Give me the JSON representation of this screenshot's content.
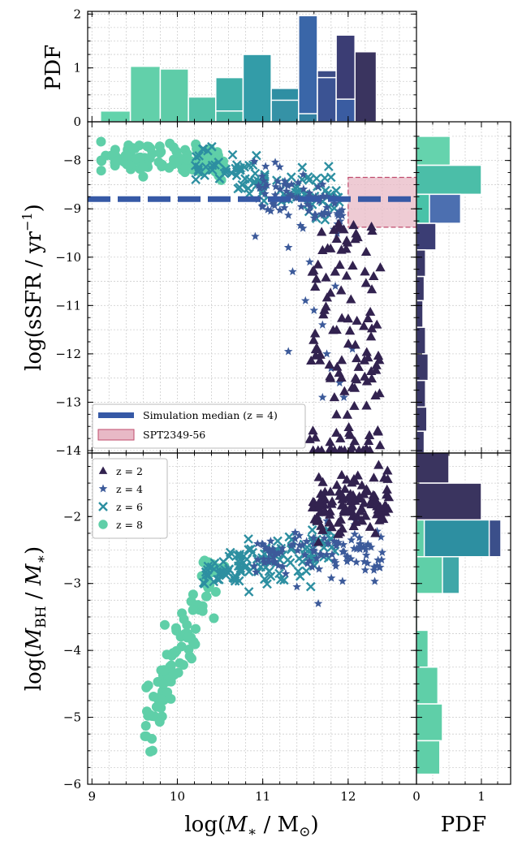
{
  "chart_data": {
    "type": "scatter",
    "title": "",
    "xlabel_pre": "log(",
    "xlabel_italic": "M",
    "xlabel_sub": "∗",
    "xlabel_mid": " / M",
    "xlabel_sub2": "⊙",
    "xlabel_post": ")",
    "xlim": [
      8.95,
      12.8
    ],
    "x_ticks": [
      "9",
      "10",
      "11",
      "12"
    ],
    "x_tick_values": [
      9,
      10,
      11,
      12
    ],
    "colors": {
      "z2": "#32224f",
      "z4": "#3c5a9a",
      "z6": "#2d8fa1",
      "z8": "#5fcfa8",
      "hline": "#3659a6",
      "span_fill": "#e8b9c6",
      "span_edge": "#c04d6e"
    },
    "top_hist": {
      "ylabel": "PDF",
      "ylim": [
        0,
        2.05
      ],
      "y_ticks": [
        "0",
        "1",
        "2"
      ],
      "y_tick_values": [
        0,
        1,
        2
      ],
      "bars": [
        {
          "x0": 9.1,
          "x1": 9.45,
          "h": 0.2,
          "color": "#63d3ab"
        },
        {
          "x0": 9.45,
          "x1": 9.8,
          "h": 1.03,
          "color": "#62d0aa"
        },
        {
          "x0": 9.8,
          "x1": 10.13,
          "h": 0.98,
          "color": "#5ecca8"
        },
        {
          "x0": 10.13,
          "x1": 10.45,
          "h": 0.46,
          "color": "#52c2a8"
        },
        {
          "x0": 10.45,
          "x1": 10.77,
          "h": 0.82,
          "color": "#3fafa8"
        },
        {
          "x0": 10.45,
          "x1": 10.77,
          "h": 0.2,
          "color": "#47b8a6"
        },
        {
          "x0": 10.77,
          "x1": 11.1,
          "h": 1.25,
          "color": "#339ca8"
        },
        {
          "x0": 11.1,
          "x1": 11.42,
          "h": 0.62,
          "color": "#2f8fa3"
        },
        {
          "x0": 11.1,
          "x1": 11.42,
          "h": 0.4,
          "color": "#3592a6"
        },
        {
          "x0": 11.42,
          "x1": 11.64,
          "h": 1.97,
          "color": "#3a66a8"
        },
        {
          "x0": 11.42,
          "x1": 11.64,
          "h": 0.15,
          "color": "#3281a2"
        },
        {
          "x0": 11.64,
          "x1": 11.86,
          "h": 0.95,
          "color": "#3d4c86"
        },
        {
          "x0": 11.64,
          "x1": 11.86,
          "h": 0.82,
          "color": "#3b5393"
        },
        {
          "x0": 11.86,
          "x1": 12.08,
          "h": 1.61,
          "color": "#3b3d74"
        },
        {
          "x0": 11.86,
          "x1": 12.08,
          "h": 0.42,
          "color": "#3a5ca1"
        },
        {
          "x0": 12.08,
          "x1": 12.33,
          "h": 1.3,
          "color": "#3a345f"
        }
      ]
    },
    "sfr_panel": {
      "ylabel_pre": "log(sSFR / yr",
      "ylabel_sup": "−1",
      "ylabel_post": ")",
      "ylim": [
        -14.05,
        -7.2
      ],
      "y_ticks": [
        "−8",
        "−9",
        "−10",
        "−11",
        "−12",
        "−13",
        "−14"
      ],
      "y_tick_values": [
        -8,
        -9,
        -10,
        -11,
        -12,
        -13,
        -14
      ],
      "median_line_y": -8.8,
      "median_line_x": [
        8.95,
        12.8
      ],
      "obs_box": {
        "x0": 12.0,
        "x1": 12.8,
        "y0": -9.38,
        "y1": -8.35
      },
      "legend": {
        "position": "lower-left",
        "entries": [
          "Simulation median (z = 4)",
          "SPT2349-56"
        ]
      }
    },
    "bh_panel": {
      "ylabel_pre": "log(",
      "ylabel_italic1": "M",
      "ylabel_sub": "BH",
      "ylabel_mid": " / ",
      "ylabel_italic2": "M",
      "ylabel_sub2": "∗",
      "ylabel_post": ")",
      "ylim": [
        -6.0,
        -1.05
      ],
      "y_ticks": [
        "−2",
        "−3",
        "−4",
        "−5",
        "−6"
      ],
      "y_tick_values": [
        -2,
        -3,
        -4,
        -5,
        -6
      ],
      "legend": {
        "position": "top-left",
        "entries": [
          "z = 2",
          "z = 4",
          "z = 6",
          "z = 8"
        ]
      }
    },
    "right_hist": {
      "xlabel": "PDF",
      "xlim": [
        0,
        1.45
      ],
      "x_ticks": [
        "0",
        "1"
      ],
      "x_tick_values": [
        0,
        1
      ],
      "sfr_bars": [
        {
          "y0": -8.1,
          "y1": -7.5,
          "w": 0.52,
          "color": "#65d3ad"
        },
        {
          "y0": -8.7,
          "y1": -8.1,
          "w": 0.78,
          "color": "#5ccaa6"
        },
        {
          "y0": -8.7,
          "y1": -8.1,
          "w": 1.0,
          "color": "#4bbea8"
        },
        {
          "y0": -9.3,
          "y1": -8.7,
          "w": 0.68,
          "color": "#4c6fb0"
        },
        {
          "y0": -9.3,
          "y1": -8.7,
          "w": 0.2,
          "color": "#48c2a8"
        },
        {
          "y0": -9.85,
          "y1": -9.3,
          "w": 0.3,
          "color": "#3b3d74"
        },
        {
          "y0": -10.4,
          "y1": -9.85,
          "w": 0.14,
          "color": "#3a3868"
        },
        {
          "y0": -10.9,
          "y1": -10.4,
          "w": 0.12,
          "color": "#3a3868"
        },
        {
          "y0": -11.45,
          "y1": -10.9,
          "w": 0.1,
          "color": "#3a3868"
        },
        {
          "y0": -12.0,
          "y1": -11.45,
          "w": 0.14,
          "color": "#3a3868"
        },
        {
          "y0": -12.55,
          "y1": -12.0,
          "w": 0.18,
          "color": "#3a3868"
        },
        {
          "y0": -13.1,
          "y1": -12.55,
          "w": 0.14,
          "color": "#3a3868"
        },
        {
          "y0": -13.6,
          "y1": -13.1,
          "w": 0.16,
          "color": "#3a3868"
        },
        {
          "y0": -14.05,
          "y1": -13.6,
          "w": 0.12,
          "color": "#3a3868"
        }
      ],
      "bh_bars": [
        {
          "y0": -1.5,
          "y1": -1.0,
          "w": 0.5,
          "color": "#3a345f"
        },
        {
          "y0": -2.05,
          "y1": -1.5,
          "w": 1.0,
          "color": "#3a345f"
        },
        {
          "y0": -2.6,
          "y1": -2.05,
          "w": 1.3,
          "color": "#3b4f8a"
        },
        {
          "y0": -2.6,
          "y1": -2.05,
          "w": 1.12,
          "color": "#2d8fa1"
        },
        {
          "y0": -2.6,
          "y1": -2.05,
          "w": 0.12,
          "color": "#5fcfa8"
        },
        {
          "y0": -3.15,
          "y1": -2.6,
          "w": 0.66,
          "color": "#3fa7a8"
        },
        {
          "y0": -3.15,
          "y1": -2.6,
          "w": 0.4,
          "color": "#5fcfa8"
        },
        {
          "y0": -3.7,
          "y1": -3.15,
          "w": 0.02,
          "color": "#5fcfa8"
        },
        {
          "y0": -4.25,
          "y1": -3.7,
          "w": 0.18,
          "color": "#5fcfa8"
        },
        {
          "y0": -4.8,
          "y1": -4.25,
          "w": 0.33,
          "color": "#5fcfa8"
        },
        {
          "y0": -5.35,
          "y1": -4.8,
          "w": 0.4,
          "color": "#5fcfa8"
        },
        {
          "y0": -5.85,
          "y1": -5.35,
          "w": 0.36,
          "color": "#5fcfa8"
        }
      ]
    },
    "generation": {
      "z8": {
        "sfr_center": [
          9.9,
          -7.95
        ],
        "sfr_spread": [
          0.35,
          0.18
        ],
        "n_sfr": 110,
        "bh_n": 90
      },
      "z6": {
        "n_sfr": 90,
        "n_bh": 110
      },
      "z4": {
        "n_sfr": 80,
        "n_bh": 100
      },
      "z2": {
        "n_sfr": 110,
        "n_bh": 110
      }
    }
  }
}
